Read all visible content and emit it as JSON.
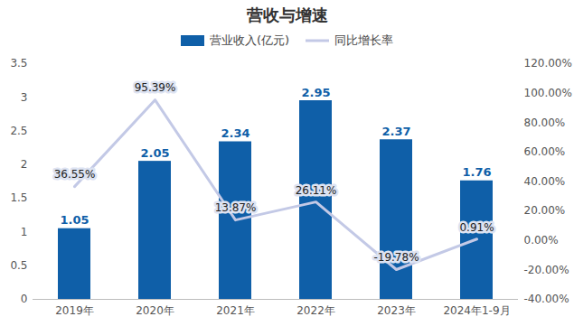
{
  "chart_data": {
    "type": "bar",
    "title": "营收与增速",
    "categories": [
      "2019年",
      "2020年",
      "2021年",
      "2022年",
      "2023年",
      "2024年1-9月"
    ],
    "series": [
      {
        "name": "营业收入(亿元)",
        "type": "bar",
        "color": "#0f5fa8",
        "values": [
          1.05,
          2.05,
          2.34,
          2.95,
          2.37,
          1.76
        ]
      },
      {
        "name": "同比增长率",
        "type": "line",
        "axis": "y2",
        "color": "#c3c9e6",
        "values": [
          36.55,
          95.39,
          13.87,
          26.11,
          -19.78,
          0.91
        ],
        "value_labels": [
          "36.55%",
          "95.39%",
          "13.87%",
          "26.11%",
          "-19.78%",
          "0.91%"
        ]
      }
    ],
    "ylim": [
      0,
      3.5
    ],
    "yticks": [
      0,
      0.5,
      1,
      1.5,
      2,
      2.5,
      3,
      3.5
    ],
    "y2lim": [
      -40,
      120
    ],
    "y2ticks": [
      {
        "value": -40,
        "label": "-40.00%"
      },
      {
        "value": -20,
        "label": "-20.00%"
      },
      {
        "value": 0,
        "label": "0.00%"
      },
      {
        "value": 20,
        "label": "20.00%"
      },
      {
        "value": 40,
        "label": "40.00%"
      },
      {
        "value": 60,
        "label": "60.00%"
      },
      {
        "value": 80,
        "label": "80.00%"
      },
      {
        "value": 100,
        "label": "100.00%"
      },
      {
        "value": 120,
        "label": "120.00%"
      }
    ],
    "data_labels": true,
    "legend": "top",
    "grid": false
  }
}
